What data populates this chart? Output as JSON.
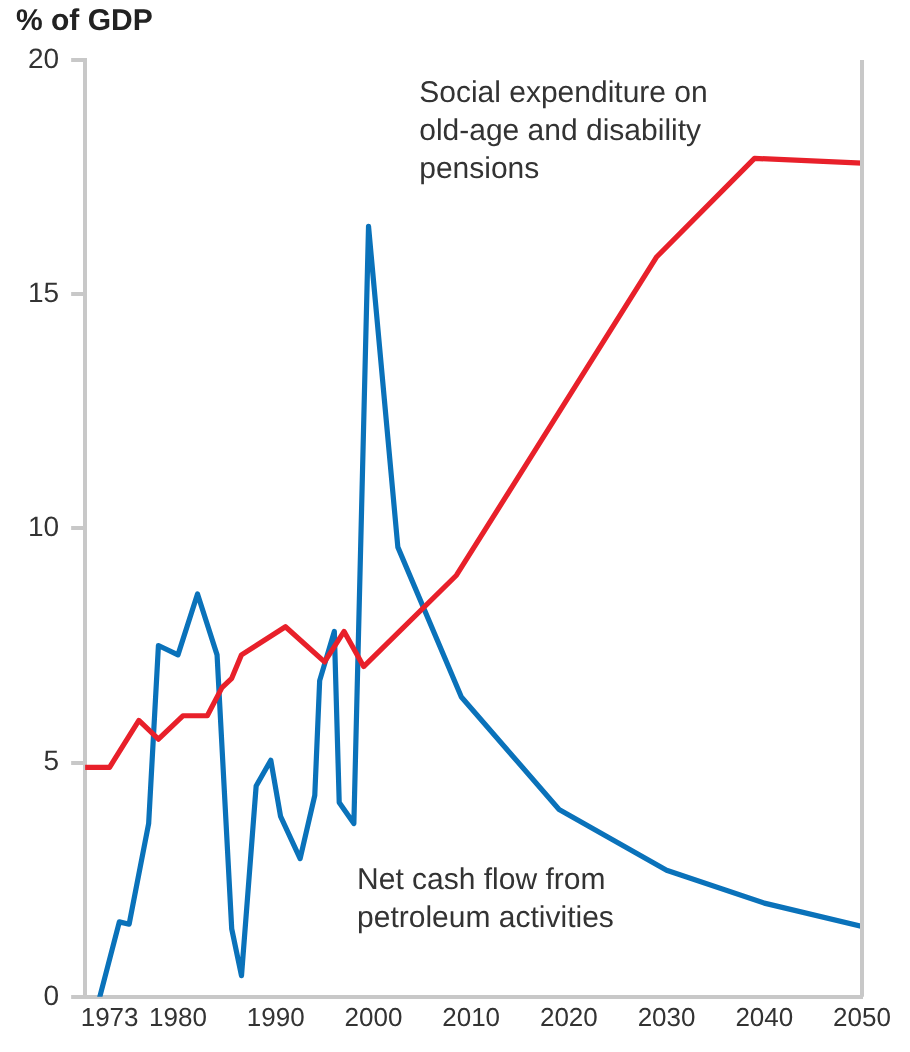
{
  "chart_data": {
    "type": "line",
    "title": "% of GDP",
    "xlim": [
      1970.5,
      2050
    ],
    "xticks": [
      1973,
      1980,
      1990,
      2000,
      2010,
      2020,
      2030,
      2040,
      2050
    ],
    "ylim": [
      0,
      20
    ],
    "yticks": [
      0,
      5,
      10,
      15,
      20
    ],
    "grid": false,
    "legend": false,
    "marker": "none",
    "line_style": "solid",
    "series": [
      {
        "name": "Social expenditure on old-age and disability pensions",
        "color": "#e8202a",
        "x": [
          1970.5,
          1973,
          1976,
          1978,
          1980.5,
          1983,
          1984.5,
          1985.5,
          1986.5,
          1991,
          1995,
          1997,
          1999,
          2008.5,
          2029,
          2039,
          2050
        ],
        "values": [
          4.9,
          4.9,
          5.9,
          5.5,
          6.0,
          6.0,
          6.6,
          6.8,
          7.3,
          7.9,
          7.15,
          7.8,
          7.05,
          9.0,
          15.8,
          17.9,
          17.8
        ]
      },
      {
        "name": "Net cash flow from petroleum activities",
        "color": "#0a72ba",
        "x": [
          1972,
          1974,
          1975,
          1977,
          1978,
          1980,
          1982,
          1984,
          1985.5,
          1986.5,
          1988,
          1989.5,
          1990.5,
          1992.5,
          1994,
          1994.5,
          1996,
          1996.5,
          1998,
          1999.5,
          2002.5,
          2009,
          2019,
          2030,
          2040,
          2050
        ],
        "values": [
          0.0,
          1.6,
          1.55,
          3.7,
          7.5,
          7.3,
          8.6,
          7.3,
          1.45,
          0.45,
          4.5,
          5.05,
          3.85,
          2.95,
          4.3,
          6.75,
          7.8,
          4.15,
          3.7,
          16.45,
          9.6,
          6.4,
          4.0,
          2.7,
          2.0,
          1.5
        ]
      }
    ]
  }
}
